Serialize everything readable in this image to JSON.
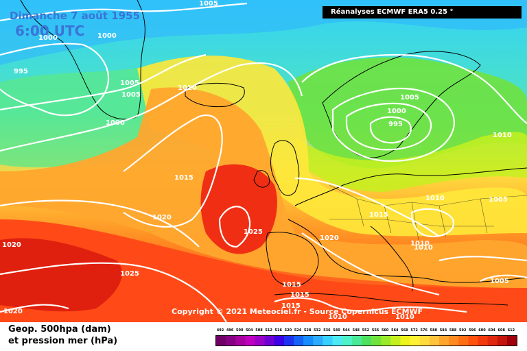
{
  "map": {
    "title_date": "Dimanche 7 août 1955",
    "title_time": "6:00 UTC",
    "source": "Réanalyses ECMWF ERA5 0.25 °",
    "copyright": "Copyright © 2021 Meteociel.fr - Source Copernicus ECMWF"
  },
  "legend": {
    "line1": "Geop. 500hpa (dam)",
    "line2": "et pression mer (hPa)",
    "scale_values": [
      "492",
      "496",
      "500",
      "504",
      "508",
      "512",
      "516",
      "520",
      "524",
      "528",
      "532",
      "536",
      "540",
      "544",
      "548",
      "552",
      "556",
      "560",
      "564",
      "568",
      "572",
      "576",
      "580",
      "584",
      "588",
      "592",
      "596",
      "600",
      "604",
      "608",
      "612"
    ],
    "scale_colors": [
      "#6e0066",
      "#850083",
      "#a6009f",
      "#c000c0",
      "#9b00c8",
      "#6c00d4",
      "#3c00e6",
      "#1e30f0",
      "#1461f5",
      "#178cff",
      "#2dacff",
      "#37d0ff",
      "#4deaf5",
      "#4ef2c8",
      "#48ea9a",
      "#4ee060",
      "#70e43c",
      "#98ea2a",
      "#c4f020",
      "#ecf41a",
      "#fff234",
      "#ffdc3c",
      "#ffc23c",
      "#ffa62e",
      "#ff8a20",
      "#ff6e14",
      "#ff520e",
      "#f23a0e",
      "#e0280e",
      "#c4160c",
      "#a0000a"
    ]
  },
  "isobars": [
    "1005",
    "1000",
    "1000",
    "995",
    "1005",
    "1005",
    "1010",
    "1000",
    "1015",
    "1020",
    "1025",
    "1020",
    "1025",
    "1020",
    "1005",
    "1000",
    "995",
    "1010",
    "1015",
    "1020",
    "1010",
    "1005",
    "1010",
    "1010",
    "1005",
    "1015",
    "1015",
    "1015",
    "1010",
    "1010"
  ]
}
